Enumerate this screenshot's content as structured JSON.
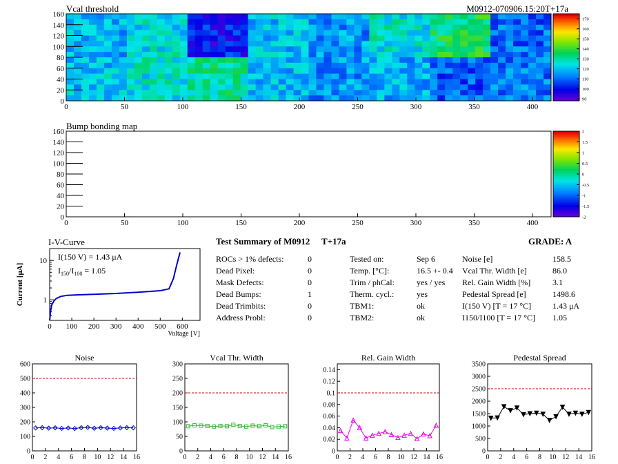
{
  "header": {
    "vcal_title": "Vcal threshold",
    "module_tag": "M0912-070906.15:20T+17a"
  },
  "chart_data": [
    {
      "id": "vcal",
      "type": "heatmap",
      "title": "Vcal threshold",
      "xlim": [
        0,
        416
      ],
      "ylim": [
        0,
        160
      ],
      "xticks": [
        0,
        50,
        100,
        150,
        200,
        250,
        300,
        350,
        400
      ],
      "yticks": [
        0,
        20,
        40,
        60,
        80,
        100,
        120,
        140,
        160
      ],
      "zlim": [
        88,
        175
      ],
      "colorbar_ticks": [
        90,
        100,
        110,
        120,
        130,
        140,
        150,
        160,
        170
      ],
      "roc_grid": {
        "cols": 8,
        "rows": 2
      },
      "roc_mean_top": [
        118,
        124,
        100,
        120,
        115,
        125,
        135,
        110
      ],
      "roc_mean_bottom": [
        120,
        125,
        130,
        120,
        115,
        118,
        108,
        112
      ]
    },
    {
      "id": "bump",
      "type": "heatmap",
      "title": "Bump bonding map",
      "xlim": [
        0,
        416
      ],
      "ylim": [
        0,
        160
      ],
      "xticks": [
        0,
        50,
        100,
        150,
        200,
        250,
        300,
        350,
        400
      ],
      "yticks": [
        0,
        20,
        40,
        60,
        80,
        100,
        120,
        140,
        160
      ],
      "zlim": [
        -2,
        2
      ],
      "colorbar_ticks": [
        "-2",
        "-1.5",
        "-1",
        "-0.5",
        "0",
        "0.5",
        "1",
        "1.5",
        "2"
      ]
    },
    {
      "id": "iv",
      "type": "line",
      "title": "I-V-Curve",
      "xlabel": "Voltage [V]",
      "ylabel": "Current [μA]",
      "log_y": true,
      "xlim": [
        0,
        680
      ],
      "ylim": [
        0.3,
        20
      ],
      "xticks": [
        0,
        100,
        200,
        300,
        400,
        500,
        600
      ],
      "yticks": [
        1,
        10
      ],
      "x": [
        0,
        5,
        10,
        20,
        30,
        50,
        80,
        120,
        200,
        300,
        400,
        500,
        540,
        560,
        570,
        580,
        590
      ],
      "y": [
        0.3,
        0.55,
        0.75,
        0.95,
        1.08,
        1.22,
        1.3,
        1.33,
        1.38,
        1.45,
        1.55,
        1.7,
        1.9,
        3.5,
        6,
        10,
        16
      ],
      "annotations": [
        "I(150 V) = 1.43 μA",
        "I150/I100 = 1.05"
      ]
    },
    {
      "id": "noise",
      "type": "line",
      "title": "Noise",
      "xlim": [
        0,
        16
      ],
      "ylim": [
        0,
        600
      ],
      "xticks": [
        0,
        2,
        4,
        6,
        8,
        10,
        12,
        14,
        16
      ],
      "yticks": [
        0,
        100,
        200,
        300,
        400,
        500,
        600
      ],
      "threshold": 500,
      "color": "#0000cc",
      "marker": "diamond",
      "x": [
        0.5,
        1.5,
        2.5,
        3.5,
        4.5,
        5.5,
        6.5,
        7.5,
        8.5,
        9.5,
        10.5,
        11.5,
        12.5,
        13.5,
        14.5,
        15.5
      ],
      "values": [
        158,
        160,
        157,
        159,
        155,
        158,
        154,
        160,
        162,
        156,
        160,
        157,
        155,
        158,
        160,
        159
      ]
    },
    {
      "id": "vcalwidth",
      "type": "line",
      "title": "Vcal Thr. Width",
      "xlim": [
        0,
        16
      ],
      "ylim": [
        0,
        300
      ],
      "xticks": [
        0,
        2,
        4,
        6,
        8,
        10,
        12,
        14,
        16
      ],
      "yticks": [
        0,
        50,
        100,
        150,
        200,
        250,
        300
      ],
      "threshold": 200,
      "color": "#33bb33",
      "marker": "square",
      "x": [
        0.5,
        1.5,
        2.5,
        3.5,
        4.5,
        5.5,
        6.5,
        7.5,
        8.5,
        9.5,
        10.5,
        11.5,
        12.5,
        13.5,
        14.5,
        15.5
      ],
      "values": [
        85,
        88,
        87,
        86,
        84,
        86,
        85,
        90,
        86,
        84,
        87,
        85,
        88,
        82,
        84,
        85
      ]
    },
    {
      "id": "gain",
      "type": "line",
      "title": "Rel. Gain Width",
      "xlim": [
        0,
        16
      ],
      "ylim": [
        0,
        0.15
      ],
      "xticks": [
        0,
        2,
        4,
        6,
        8,
        10,
        12,
        14,
        16
      ],
      "yticks": [
        0,
        0.02,
        0.04,
        0.06,
        0.08,
        0.1,
        0.12,
        0.14
      ],
      "threshold": 0.1,
      "color": "#ee00ee",
      "marker": "triangle",
      "x": [
        0.5,
        1.5,
        2.5,
        3.5,
        4.5,
        5.5,
        6.5,
        7.5,
        8.5,
        9.5,
        10.5,
        11.5,
        12.5,
        13.5,
        14.5,
        15.5
      ],
      "values": [
        0.035,
        0.022,
        0.053,
        0.04,
        0.022,
        0.027,
        0.03,
        0.033,
        0.028,
        0.023,
        0.027,
        0.03,
        0.021,
        0.029,
        0.026,
        0.044
      ]
    },
    {
      "id": "pedestal",
      "type": "line",
      "title": "Pedestal Spread",
      "xlim": [
        0,
        16
      ],
      "ylim": [
        0,
        3500
      ],
      "xticks": [
        0,
        2,
        4,
        6,
        8,
        10,
        12,
        14,
        16
      ],
      "yticks": [
        0,
        500,
        1000,
        1500,
        2000,
        2500,
        3000,
        3500
      ],
      "threshold": 2500,
      "color": "#000000",
      "marker": "triangle-down",
      "x": [
        0.5,
        1.5,
        2.5,
        3.5,
        4.5,
        5.5,
        6.5,
        7.5,
        8.5,
        9.5,
        10.5,
        11.5,
        12.5,
        13.5,
        14.5,
        15.5
      ],
      "values": [
        1320,
        1330,
        1780,
        1620,
        1730,
        1460,
        1500,
        1520,
        1480,
        1230,
        1380,
        1760,
        1480,
        1520,
        1480,
        1550
      ]
    }
  ],
  "summary": {
    "title": "Test Summary of M0912",
    "tag": "T+17a",
    "grade": "GRADE:  A",
    "col1": [
      {
        "label": "ROCs > 1% defects:",
        "value": "0"
      },
      {
        "label": "Dead Pixel:",
        "value": "0"
      },
      {
        "label": "Mask Defects:",
        "value": "0"
      },
      {
        "label": "Dead Bumps:",
        "value": "1"
      },
      {
        "label": "Dead Trimbits:",
        "value": "0"
      },
      {
        "label": "Address Probl:",
        "value": "0"
      }
    ],
    "col2": [
      {
        "label": "Tested on:",
        "value": "Sep 6"
      },
      {
        "label": "Temp. [°C]:",
        "value": "16.5 +- 0.4"
      },
      {
        "label": "Trim / phCal:",
        "value": "yes / yes"
      },
      {
        "label": "Therm. cycl.:",
        "value": "yes"
      },
      {
        "label": "TBM1:",
        "value": "ok"
      },
      {
        "label": "TBM2:",
        "value": "ok"
      }
    ],
    "col3": [
      {
        "label": "Noise [e]",
        "value": "158.5"
      },
      {
        "label": "Vcal Thr. Width [e]",
        "value": "86.0"
      },
      {
        "label": "Rel. Gain Width [%]",
        "value": "3.1"
      },
      {
        "label": "Pedestal Spread [e]",
        "value": "1498.6"
      },
      {
        "label": "I(150 V) [T = 17 °C]",
        "value": "1.43 μA"
      },
      {
        "label": "I150/I100  [T = 17 °C]",
        "value": "1.05"
      }
    ]
  }
}
